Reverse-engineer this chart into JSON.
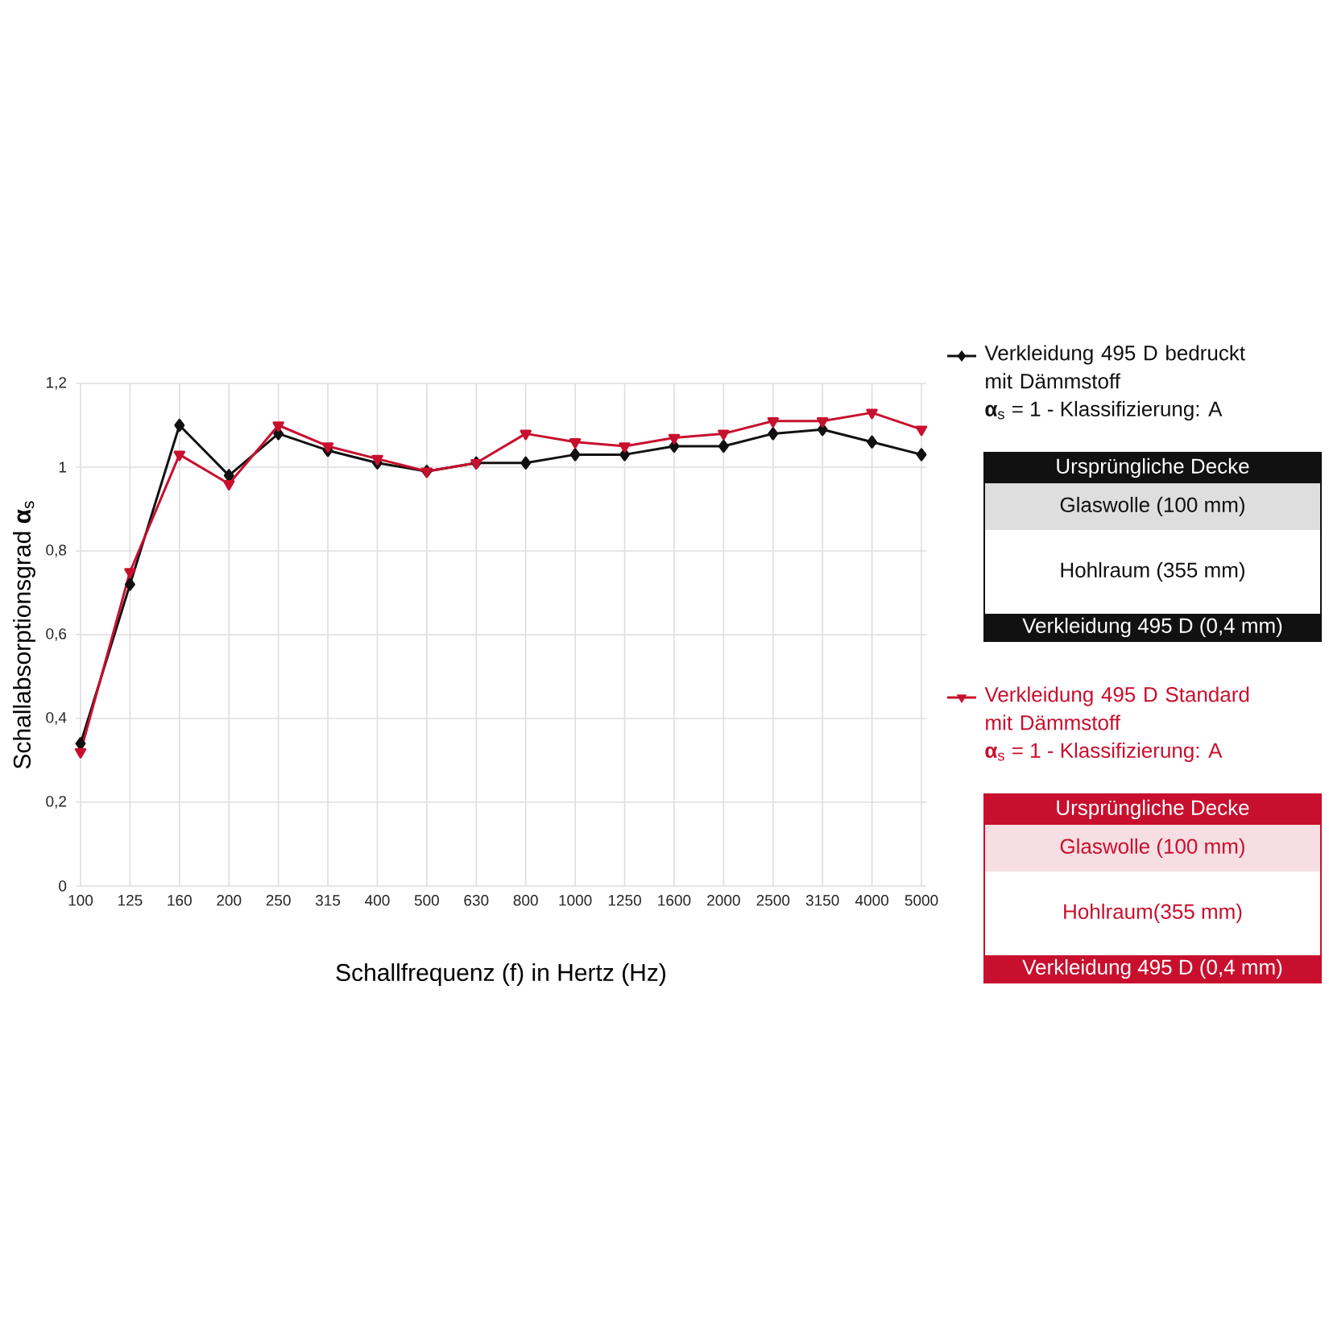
{
  "chart_data": {
    "type": "line",
    "xlabel": "Schallfrequenz (f) in Hertz (Hz)",
    "ylabel": "Schallabsorptionsgrad **α**$_{s}$",
    "categories": [
      "100",
      "125",
      "160",
      "200",
      "250",
      "315",
      "400",
      "500",
      "630",
      "800",
      "1000",
      "1250",
      "1600",
      "2000",
      "2500",
      "3150",
      "4000",
      "5000"
    ],
    "series": [
      {
        "name": "Verkleidung 495 D bedruckt mit Dämmstoff",
        "color": "#111111",
        "marker": "diamond",
        "values": [
          0.34,
          0.72,
          1.1,
          0.98,
          1.08,
          1.04,
          1.01,
          0.99,
          1.01,
          1.01,
          1.03,
          1.03,
          1.05,
          1.05,
          1.08,
          1.09,
          1.06,
          1.03
        ]
      },
      {
        "name": "Verkleidung 495 D Standard mit Dämmstoff",
        "color": "#c8102e",
        "marker": "triangle",
        "values": [
          0.32,
          0.75,
          1.03,
          0.96,
          1.1,
          1.05,
          1.02,
          0.99,
          1.01,
          1.08,
          1.06,
          1.05,
          1.07,
          1.08,
          1.11,
          1.11,
          1.13,
          1.09
        ]
      }
    ],
    "ylim": [
      0,
      1.2
    ],
    "yticks": [
      0,
      {
        "value": 0.2,
        "label": "0,2"
      },
      {
        "value": 0.4,
        "label": "0,4"
      },
      {
        "value": 0.6,
        "label": "0,6"
      },
      {
        "value": 0.8,
        "label": "0,8"
      },
      1,
      {
        "value": 1.2,
        "label": "1,2"
      }
    ],
    "grid": true,
    "legend": "right",
    "line_style": "solid",
    "annotations": [
      "**α**$_{s}$ = 1 - Klassifizierung: A",
      "Ursprüngliche Decke",
      "Glaswolle (100 mm)",
      "Hohlraum (355 mm)",
      "Verkleidung 495 D (0,4 mm)",
      "**α**$_{s}$ = 1 - Klassifizierung: A",
      "Ursprüngliche Decke",
      "Glaswolle (100 mm)",
      "Hohlraum(355 mm)",
      "Verkleidung 495 D (0,4 mm)"
    ]
  }
}
